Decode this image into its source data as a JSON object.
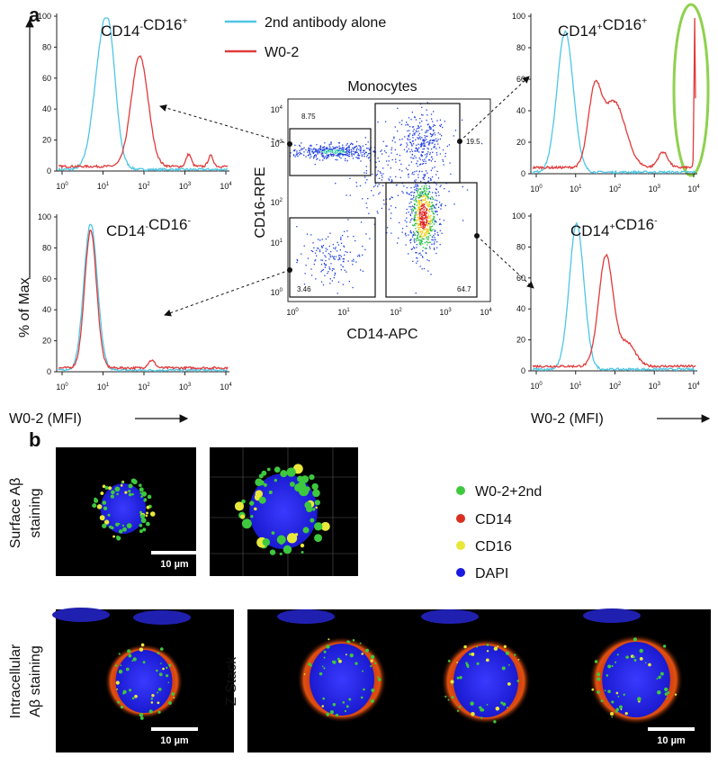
{
  "panel_a": {
    "label": "a",
    "histograms": [
      {
        "title": [
          {
            "text": "CD14",
            "sup": "-"
          },
          {
            "text": "CD16",
            "sup": "+"
          }
        ]
      },
      {
        "title": [
          {
            "text": "CD14",
            "sup": "-"
          },
          {
            "text": "CD16",
            "sup": "-"
          }
        ]
      },
      {
        "title": [
          {
            "text": "CD14",
            "sup": "+"
          },
          {
            "text": "CD16",
            "sup": "+"
          }
        ]
      },
      {
        "title": [
          {
            "text": "CD14",
            "sup": "+"
          },
          {
            "text": "CD16",
            "sup": "-"
          }
        ]
      }
    ],
    "y_ticks": [
      "100",
      "80",
      "60",
      "40",
      "20",
      "0"
    ],
    "x_ticks": [
      {
        "base": "10",
        "exp": "0"
      },
      {
        "base": "10",
        "exp": "1"
      },
      {
        "base": "10",
        "exp": "2"
      },
      {
        "base": "10",
        "exp": "3"
      },
      {
        "base": "10",
        "exp": "4"
      }
    ],
    "y_axis_label": "% of Max",
    "x_axis_label": "W0-2 (MFI)",
    "legend": [
      "2nd antibody alone",
      "W0-2"
    ],
    "scatter": {
      "title": "Monocytes",
      "x_label": "CD14-APC",
      "y_label": "CD16-RPE",
      "gates": [
        "8.75",
        "19.5",
        "64.7",
        "3.46"
      ]
    }
  },
  "panel_b": {
    "label": "b",
    "row_labels": [
      [
        "Surface Aβ",
        "staining"
      ],
      [
        "Intracellular",
        "Aβ staining"
      ]
    ],
    "z_stack_label": "Z Stack",
    "scale_bar": "10 µm",
    "legend": [
      "W0-2+2nd",
      "CD14",
      "CD16",
      "DAPI"
    ]
  }
}
